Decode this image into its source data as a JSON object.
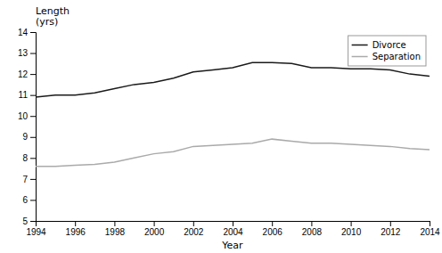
{
  "chart_data": {
    "type": "line",
    "xlabel": "Year",
    "ylabel": "Length\n(yrs)",
    "x": [
      1994,
      1995,
      1996,
      1997,
      1998,
      1999,
      2000,
      2001,
      2002,
      2003,
      2004,
      2005,
      2006,
      2007,
      2008,
      2009,
      2010,
      2011,
      2012,
      2013,
      2014
    ],
    "series": [
      {
        "name": "Divorce",
        "color": "#1a1a1a",
        "values": [
          10.9,
          11.0,
          11.0,
          11.1,
          11.3,
          11.5,
          11.6,
          11.8,
          12.1,
          12.2,
          12.3,
          12.55,
          12.55,
          12.5,
          12.3,
          12.3,
          12.25,
          12.25,
          12.2,
          12.0,
          11.9
        ]
      },
      {
        "name": "Separation",
        "color": "#aaaaaa",
        "values": [
          7.6,
          7.6,
          7.65,
          7.7,
          7.8,
          8.0,
          8.2,
          8.3,
          8.55,
          8.6,
          8.65,
          8.7,
          8.9,
          8.8,
          8.7,
          8.7,
          8.65,
          8.6,
          8.55,
          8.45,
          8.4
        ]
      }
    ],
    "xlim": [
      1994,
      2014
    ],
    "xticks": [
      1994,
      1996,
      1998,
      2000,
      2002,
      2004,
      2006,
      2008,
      2010,
      2012,
      2014
    ],
    "ylim": [
      5,
      14
    ],
    "yticks": [
      5,
      6,
      7,
      8,
      9,
      10,
      11,
      12,
      13,
      14
    ],
    "grid": false,
    "legend": "upper right"
  }
}
